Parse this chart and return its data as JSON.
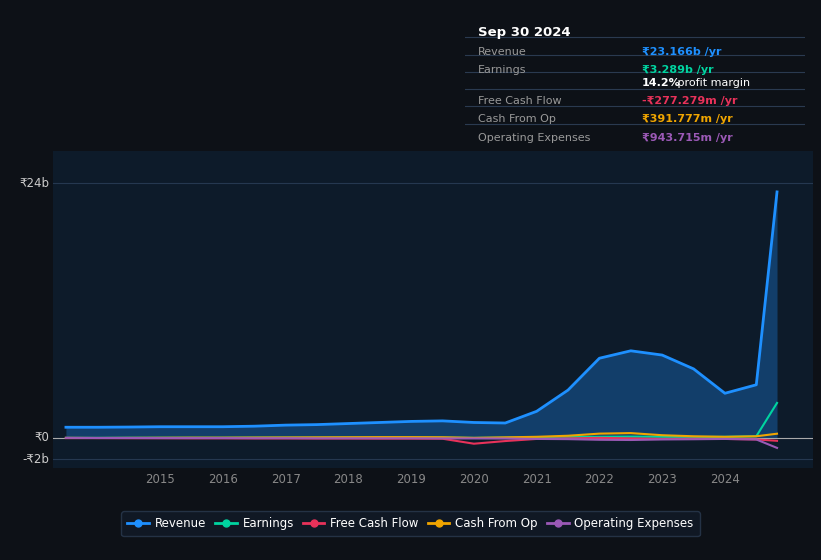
{
  "background_color": "#0d1117",
  "plot_bg_color": "#0d1b2a",
  "grid_color": "#253850",
  "ytick_labels": [
    "₹24b",
    "₹0",
    "-₹2b"
  ],
  "ytick_values": [
    24000000000,
    0,
    -2000000000
  ],
  "xlim": [
    2013.3,
    2025.4
  ],
  "ylim": [
    -2800000000,
    27000000000
  ],
  "years": [
    2013.5,
    2014.0,
    2014.5,
    2015.0,
    2015.5,
    2016.0,
    2016.5,
    2017.0,
    2017.5,
    2018.0,
    2018.5,
    2019.0,
    2019.5,
    2020.0,
    2020.5,
    2021.0,
    2021.5,
    2022.0,
    2022.5,
    2023.0,
    2023.5,
    2024.0,
    2024.5,
    2024.83
  ],
  "revenue": [
    1000000000.0,
    1000000000.0,
    1020000000.0,
    1050000000.0,
    1050000000.0,
    1050000000.0,
    1100000000.0,
    1200000000.0,
    1250000000.0,
    1350000000.0,
    1450000000.0,
    1550000000.0,
    1600000000.0,
    1450000000.0,
    1400000000.0,
    2500000000.0,
    4500000000.0,
    7500000000.0,
    8200000000.0,
    7800000000.0,
    6500000000.0,
    4200000000.0,
    5000000000.0,
    23166000000.0
  ],
  "earnings": [
    0.0,
    0.0,
    10000000.0,
    10000000.0,
    10000000.0,
    10000000.0,
    20000000.0,
    20000000.0,
    20000000.0,
    30000000.0,
    30000000.0,
    40000000.0,
    30000000.0,
    0.0,
    20000000.0,
    50000000.0,
    80000000.0,
    100000000.0,
    120000000.0,
    100000000.0,
    80000000.0,
    100000000.0,
    150000000.0,
    3289000000.0
  ],
  "free_cash_flow": [
    -20000000.0,
    -20000000.0,
    -30000000.0,
    -30000000.0,
    -40000000.0,
    -40000000.0,
    -50000000.0,
    -50000000.0,
    -60000000.0,
    -60000000.0,
    -70000000.0,
    -70000000.0,
    -80000000.0,
    -550000000.0,
    -300000000.0,
    -100000000.0,
    -50000000.0,
    0.0,
    -50000000.0,
    -100000000.0,
    -80000000.0,
    -100000000.0,
    -150000000.0,
    -277000000.0
  ],
  "cash_from_op": [
    0.0,
    -10000000.0,
    0.0,
    10000000.0,
    20000000.0,
    20000000.0,
    30000000.0,
    40000000.0,
    50000000.0,
    60000000.0,
    70000000.0,
    70000000.0,
    60000000.0,
    0.0,
    50000000.0,
    100000000.0,
    200000000.0,
    400000000.0,
    450000000.0,
    250000000.0,
    150000000.0,
    100000000.0,
    150000000.0,
    392000000.0
  ],
  "operating_expenses": [
    0.0,
    -10000000.0,
    -10000000.0,
    -20000000.0,
    -20000000.0,
    -20000000.0,
    -30000000.0,
    -30000000.0,
    -40000000.0,
    -40000000.0,
    -40000000.0,
    -40000000.0,
    -50000000.0,
    -50000000.0,
    -60000000.0,
    -100000000.0,
    -120000000.0,
    -180000000.0,
    -200000000.0,
    -150000000.0,
    -130000000.0,
    -100000000.0,
    -150000000.0,
    -944000000.0
  ],
  "line_colors": {
    "revenue": "#1e90ff",
    "earnings": "#00d4a0",
    "free_cash_flow": "#e8325a",
    "cash_from_op": "#f0a500",
    "operating_expenses": "#9b59b6"
  },
  "x_tick_years": [
    2015,
    2016,
    2017,
    2018,
    2019,
    2020,
    2021,
    2022,
    2023,
    2024
  ],
  "info_box": {
    "date": "Sep 30 2024",
    "rows": [
      {
        "label": "Revenue",
        "value": "₹23.166b /yr",
        "value_color": "#1e90ff"
      },
      {
        "label": "Earnings",
        "value": "₹3.289b /yr",
        "value_color": "#00d4a0"
      },
      {
        "label": "",
        "value": "14.2% profit margin",
        "value_color": "#ffffff"
      },
      {
        "label": "Free Cash Flow",
        "value": "-₹277.279m /yr",
        "value_color": "#e8325a"
      },
      {
        "label": "Cash From Op",
        "value": "₹391.777m /yr",
        "value_color": "#f0a500"
      },
      {
        "label": "Operating Expenses",
        "value": "₹943.715m /yr",
        "value_color": "#9b59b6"
      }
    ]
  }
}
